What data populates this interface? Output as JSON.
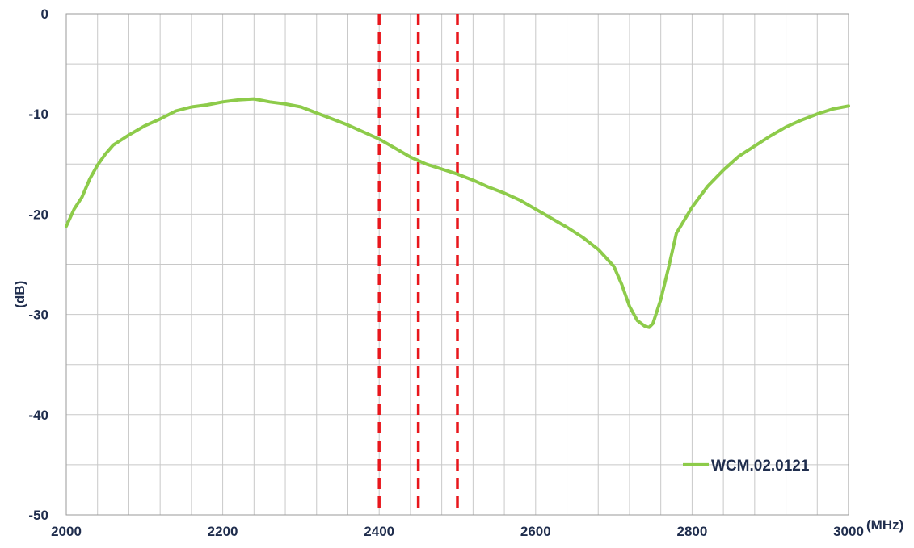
{
  "chart_data": {
    "type": "line",
    "title": "",
    "xlabel": "(MHz)",
    "ylabel": "(dB)",
    "xlim": [
      2000,
      3000
    ],
    "ylim": [
      -50,
      0
    ],
    "x_ticks": [
      2000,
      2200,
      2400,
      2600,
      2800,
      3000
    ],
    "x_tick_labels": [
      "2000",
      "2200",
      "2400",
      "2600",
      "2800",
      "3000"
    ],
    "y_ticks": [
      0,
      -10,
      -20,
      -30,
      -40,
      -50
    ],
    "y_tick_labels": [
      "0",
      "-10",
      "-20",
      "-30",
      "-40",
      "-50"
    ],
    "x_minor_step": 40,
    "y_minor_step": 5,
    "grid": true,
    "legend_position": "bottom-right",
    "markers": [
      {
        "x": 2400,
        "color": "#e8161c",
        "style": "dashed"
      },
      {
        "x": 2450,
        "color": "#e8161c",
        "style": "dashed"
      },
      {
        "x": 2500,
        "color": "#e8161c",
        "style": "dashed"
      }
    ],
    "series": [
      {
        "name": "WCM.02.0121",
        "color": "#8dcb4a",
        "x": [
          2000,
          2010,
          2020,
          2030,
          2040,
          2050,
          2060,
          2070,
          2080,
          2100,
          2120,
          2140,
          2160,
          2180,
          2200,
          2220,
          2240,
          2260,
          2280,
          2300,
          2320,
          2340,
          2360,
          2380,
          2400,
          2420,
          2440,
          2460,
          2480,
          2500,
          2520,
          2540,
          2560,
          2580,
          2600,
          2620,
          2640,
          2660,
          2680,
          2700,
          2710,
          2720,
          2730,
          2740,
          2745,
          2750,
          2760,
          2770,
          2780,
          2800,
          2820,
          2840,
          2860,
          2880,
          2900,
          2920,
          2940,
          2960,
          2980,
          3000
        ],
        "y": [
          -21.2,
          -19.5,
          -18.3,
          -16.5,
          -15.1,
          -14.0,
          -13.1,
          -12.6,
          -12.1,
          -11.2,
          -10.5,
          -9.7,
          -9.3,
          -9.1,
          -8.8,
          -8.6,
          -8.5,
          -8.8,
          -9.0,
          -9.3,
          -9.9,
          -10.5,
          -11.1,
          -11.8,
          -12.5,
          -13.4,
          -14.3,
          -15.0,
          -15.5,
          -16.0,
          -16.6,
          -17.3,
          -17.9,
          -18.6,
          -19.5,
          -20.4,
          -21.3,
          -22.3,
          -23.5,
          -25.2,
          -27.0,
          -29.2,
          -30.6,
          -31.2,
          -31.3,
          -30.9,
          -28.5,
          -25.3,
          -21.9,
          -19.3,
          -17.2,
          -15.6,
          -14.2,
          -13.2,
          -12.2,
          -11.3,
          -10.6,
          -10.0,
          -9.5,
          -9.2
        ]
      }
    ]
  }
}
